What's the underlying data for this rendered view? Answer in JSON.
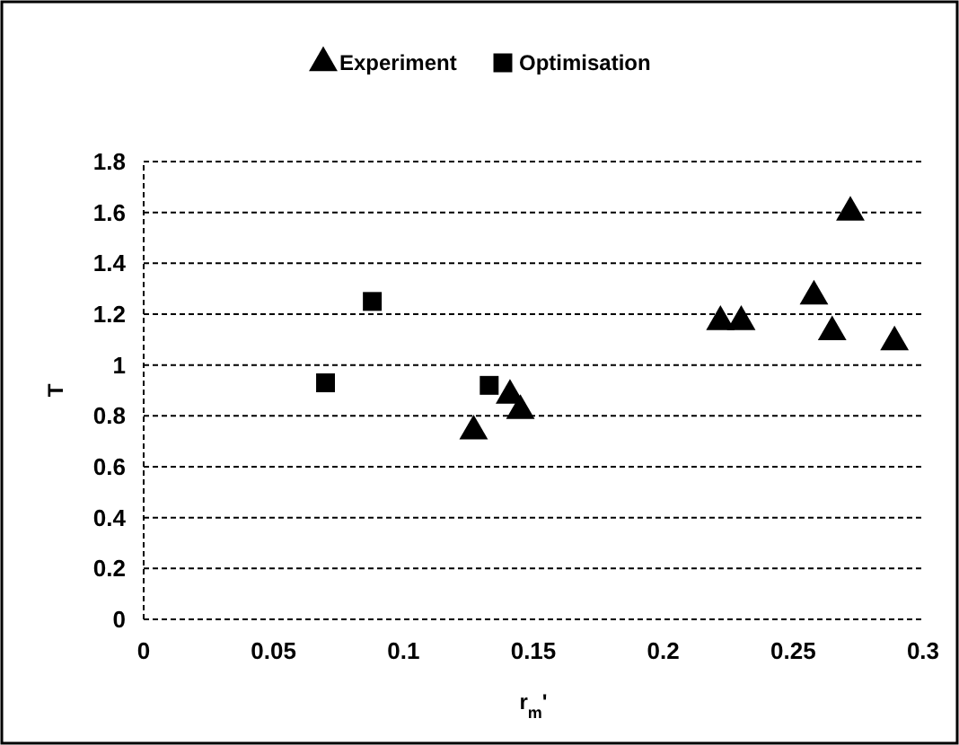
{
  "chart_data": {
    "type": "scatter",
    "xlabel": "r$_{m}$'",
    "ylabel": "T",
    "xlim": [
      0,
      0.3
    ],
    "xticks": [
      0,
      0.05,
      0.1,
      0.15,
      0.2,
      0.25,
      0.3
    ],
    "ylim": [
      0,
      1.8
    ],
    "yticks": [
      0,
      0.2,
      0.4,
      0.6,
      0.8,
      1,
      1.2,
      1.4,
      1.6,
      1.8
    ],
    "grid": "y",
    "legend": "top",
    "series": [
      {
        "name": "Experiment",
        "color": "#000000",
        "marker": "triangle",
        "x": [
          0.127,
          0.141,
          0.145,
          0.222,
          0.23,
          0.258,
          0.265,
          0.272,
          0.289
        ],
        "values": [
          0.74,
          0.88,
          0.82,
          1.17,
          1.17,
          1.27,
          1.13,
          1.6,
          1.09
        ]
      },
      {
        "name": "Optimisation",
        "color": "#000000",
        "marker": "square",
        "x": [
          0.07,
          0.088,
          0.133
        ],
        "values": [
          0.93,
          1.25,
          0.92
        ]
      }
    ]
  }
}
